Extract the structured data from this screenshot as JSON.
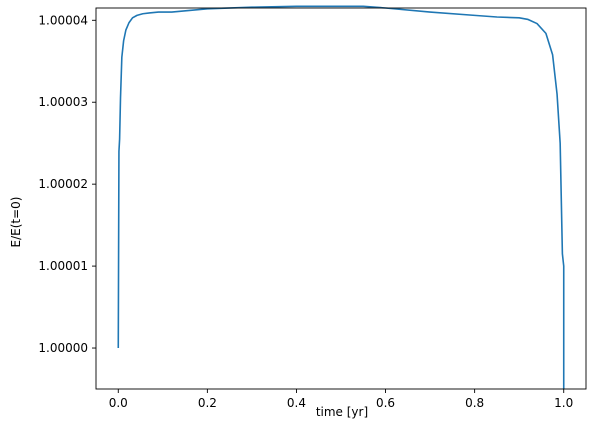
{
  "chart_data": {
    "type": "line",
    "title": "",
    "xlabel": "time [yr]",
    "ylabel": "E/E(t=0)",
    "xlim": [
      -0.05,
      1.05
    ],
    "ylim": [
      0.999995,
      1.0000415
    ],
    "xticks": [
      0.0,
      0.2,
      0.4,
      0.6,
      0.8,
      1.0
    ],
    "xtick_labels": [
      "0.0",
      "0.2",
      "0.4",
      "0.6",
      "0.8",
      "1.0"
    ],
    "yticks": [
      1.0,
      1.00001,
      1.00002,
      1.00003,
      1.00004
    ],
    "ytick_labels": [
      "1.00000",
      "1.00001",
      "1.00002",
      "1.00003",
      "1.00004"
    ],
    "grid": false,
    "colors": {
      "line": "#1f77b4"
    },
    "series": [
      {
        "x": [
          0.0,
          0.0015,
          0.003,
          0.005,
          0.008,
          0.012,
          0.017,
          0.024,
          0.032,
          0.042,
          0.055,
          0.07,
          0.09,
          0.12,
          0.2,
          0.3,
          0.4,
          0.5,
          0.55,
          0.6,
          0.7,
          0.8,
          0.85,
          0.9,
          0.92,
          0.94,
          0.96,
          0.975,
          0.985,
          0.992,
          0.997,
          1.0,
          1.0
        ],
        "y": [
          1.0,
          1.000024,
          1.0000255,
          1.0000305,
          1.0000355,
          1.0000375,
          1.0000388,
          1.0000397,
          1.0000403,
          1.0000406,
          1.0000408,
          1.0000409,
          1.000041,
          1.000041,
          1.0000414,
          1.0000416,
          1.0000417,
          1.0000417,
          1.0000417,
          1.0000415,
          1.000041,
          1.0000406,
          1.0000404,
          1.0000403,
          1.0000401,
          1.0000396,
          1.0000384,
          1.0000358,
          1.000031,
          1.000025,
          1.0000115,
          1.00001,
          0.999995
        ]
      }
    ]
  }
}
